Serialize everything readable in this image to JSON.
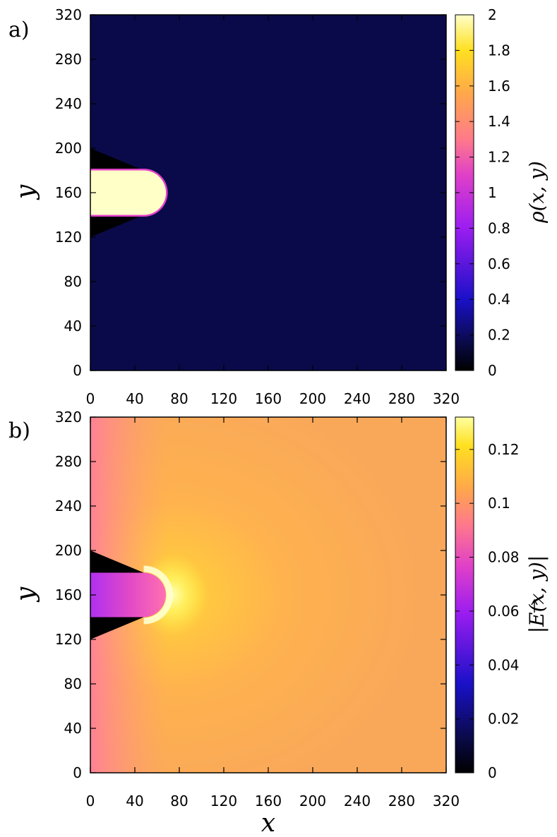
{
  "figure": {
    "xlabel": "x",
    "colormap": [
      "#000000",
      "#0a0a4a",
      "#1a10c8",
      "#9b1df0",
      "#e040c8",
      "#ff7a8a",
      "#ffa84a",
      "#ffe020",
      "#ffffc8"
    ]
  },
  "chart_data": [
    {
      "type": "heatmap",
      "panel_label": "a)",
      "xlabel": "",
      "ylabel": "y",
      "xlim": [
        0,
        320
      ],
      "ylim": [
        0,
        320
      ],
      "x_ticks": [
        "0",
        "40",
        "80",
        "120",
        "160",
        "200",
        "240",
        "280",
        "320"
      ],
      "y_ticks": [
        "0",
        "40",
        "80",
        "120",
        "160",
        "200",
        "240",
        "280",
        "320"
      ],
      "colorbar": {
        "label": "ρ(x, y)",
        "range": [
          0,
          2
        ],
        "ticks": [
          "0",
          "0.2",
          "0.4",
          "0.6",
          "0.8",
          "1",
          "1.2",
          "1.4",
          "1.6",
          "1.8",
          "2"
        ]
      },
      "field": {
        "background_value": 0.05,
        "streamer_value": 2.0,
        "streamer": {
          "x_start": 0,
          "x_end": 48,
          "y_low": 140,
          "y_high": 180,
          "cap_radius": 20
        },
        "electrode": {
          "y_top": 200,
          "y_bottom": 120,
          "tip_x": 48
        }
      }
    },
    {
      "type": "heatmap",
      "panel_label": "b)",
      "xlabel": "x",
      "ylabel": "y",
      "xlim": [
        0,
        320
      ],
      "ylim": [
        0,
        320
      ],
      "x_ticks": [
        "0",
        "40",
        "80",
        "120",
        "160",
        "200",
        "240",
        "280",
        "320"
      ],
      "y_ticks": [
        "0",
        "40",
        "80",
        "120",
        "160",
        "200",
        "240",
        "280",
        "320"
      ],
      "colorbar": {
        "label": "|E(x, y)|",
        "range": [
          0,
          0.132
        ],
        "ticks": [
          "0",
          "0.02",
          "0.04",
          "0.06",
          "0.08",
          "0.1",
          "0.12"
        ]
      },
      "field": {
        "background_value": 0.098,
        "streamer_inner_value": 0.072,
        "tip_peak_value": 0.132,
        "streamer": {
          "x_start": 0,
          "x_end": 48,
          "y_low": 140,
          "y_high": 180,
          "cap_radius": 20
        },
        "electrode": {
          "y_top": 200,
          "y_bottom": 120,
          "tip_x": 48
        }
      }
    }
  ]
}
